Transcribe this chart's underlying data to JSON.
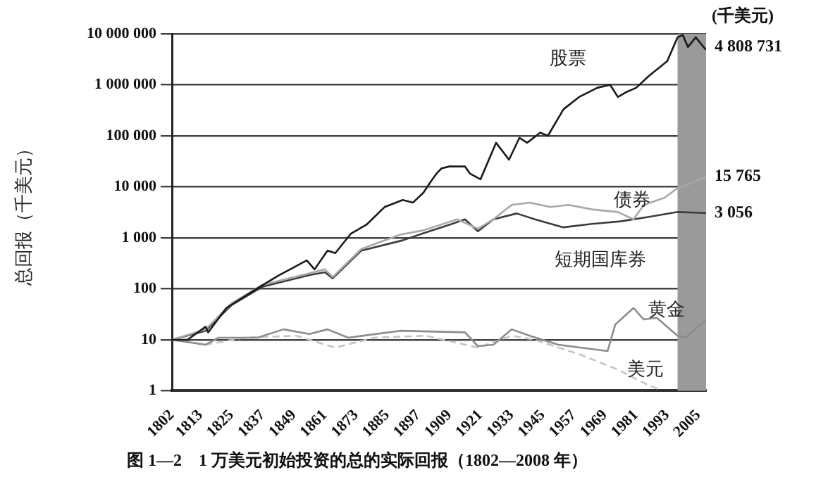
{
  "chart_data": {
    "type": "line",
    "title": "图 1—2　1 万美元初始投资的总的实际回报（1802—2008 年）",
    "ylabel": "总回报（千美元）",
    "log": "y",
    "grid": "y",
    "legend": false,
    "marker": "none",
    "xlim": [
      1802,
      2008
    ],
    "xticks": [
      1802,
      1813,
      1825,
      1837,
      1849,
      1861,
      1873,
      1885,
      1897,
      1909,
      1921,
      1933,
      1945,
      1957,
      1969,
      1981,
      1993,
      2005
    ],
    "ylim": [
      1,
      10000000
    ],
    "yticks": [
      {
        "value": 1,
        "label": "1"
      },
      {
        "value": 10,
        "label": "10"
      },
      {
        "value": 100,
        "label": "100"
      },
      {
        "value": 1000,
        "label": "1 000"
      },
      {
        "value": 10000,
        "label": "10 000"
      },
      {
        "value": 100000,
        "label": "100 000"
      },
      {
        "value": 1000000,
        "label": "1 000 000"
      },
      {
        "value": 10000000,
        "label": "10 000 000"
      }
    ],
    "bands": [
      {
        "axis": "x",
        "from": 1997,
        "to": 2008,
        "color": "#9a9a9a"
      }
    ],
    "annotations": [
      "(千美元)",
      "4 808 731",
      "15 765",
      "3 056"
    ],
    "series": [
      {
        "name": "股票",
        "color": "#1a1a1a",
        "line_style": "solid",
        "x": [
          1802,
          1808,
          1815,
          1816,
          1823,
          1836,
          1843,
          1854,
          1857,
          1862,
          1865,
          1871,
          1877,
          1884,
          1891,
          1895,
          1899,
          1902,
          1904,
          1906,
          1909,
          1915,
          1917,
          1921,
          1927,
          1932,
          1936,
          1939,
          1944,
          1947,
          1953,
          1959,
          1966,
          1971,
          1974,
          1977,
          1981,
          1986,
          1993,
          1997,
          1999,
          2001,
          2004,
          2008
        ],
        "values": [
          10,
          10,
          18,
          14,
          42,
          110,
          180,
          360,
          240,
          560,
          500,
          1200,
          1800,
          4000,
          5500,
          4900,
          7700,
          13000,
          18000,
          23000,
          25000,
          25000,
          18000,
          14000,
          73000,
          34000,
          91000,
          73000,
          115000,
          100000,
          330000,
          575000,
          870000,
          1000000,
          575000,
          710000,
          870000,
          1500000,
          2900000,
          8500000,
          9500000,
          5500000,
          8500000,
          4808731
        ]
      },
      {
        "name": "债券",
        "color": "#a8a8a8",
        "line_style": "solid",
        "x": [
          1802,
          1815,
          1825,
          1837,
          1855,
          1861,
          1864,
          1875,
          1890,
          1899,
          1912,
          1920,
          1926,
          1933,
          1940,
          1948,
          1955,
          1964,
          1974,
          1980,
          1984,
          1992,
          1997,
          2002,
          2008
        ],
        "values": [
          10,
          16,
          52,
          120,
          200,
          240,
          170,
          600,
          1150,
          1400,
          2300,
          1500,
          2300,
          4400,
          4900,
          4000,
          4400,
          3600,
          3200,
          2300,
          4400,
          6100,
          9400,
          11700,
          15765
        ]
      },
      {
        "name": "短期国库券",
        "color": "#3c3c3c",
        "line_style": "solid",
        "x": [
          1802,
          1815,
          1825,
          1837,
          1855,
          1861,
          1864,
          1875,
          1891,
          1899,
          1910,
          1915,
          1920,
          1926,
          1935,
          1942,
          1953,
          1964,
          1975,
          1986,
          1997,
          2008
        ],
        "values": [
          10,
          15,
          48,
          110,
          185,
          210,
          160,
          560,
          890,
          1230,
          1870,
          2300,
          1340,
          2300,
          3000,
          2300,
          1600,
          1870,
          2100,
          2570,
          3200,
          3056
        ]
      },
      {
        "name": "黄金",
        "color": "#8c8c8c",
        "line_style": "solid",
        "x": [
          1802,
          1815,
          1820,
          1835,
          1845,
          1855,
          1862,
          1870,
          1890,
          1915,
          1920,
          1926,
          1933,
          1940,
          1951,
          1970,
          1973,
          1980,
          1984,
          1989,
          1997,
          2000,
          2008
        ],
        "values": [
          10,
          8,
          11,
          11,
          16,
          13,
          16,
          11,
          15,
          14,
          7.5,
          8,
          16,
          12,
          8,
          6,
          20,
          42,
          25,
          27,
          12,
          11,
          25
        ]
      },
      {
        "name": "美元",
        "color": "#c4c4c4",
        "line_style": "dashed",
        "x": [
          1802,
          1815,
          1830,
          1850,
          1865,
          1880,
          1900,
          1920,
          1933,
          1942,
          1960,
          1974,
          1983,
          1990
        ],
        "values": [
          10,
          8,
          11,
          12,
          7,
          11,
          12,
          7,
          12,
          10,
          5,
          2.6,
          1.5,
          1.05
        ]
      }
    ]
  }
}
